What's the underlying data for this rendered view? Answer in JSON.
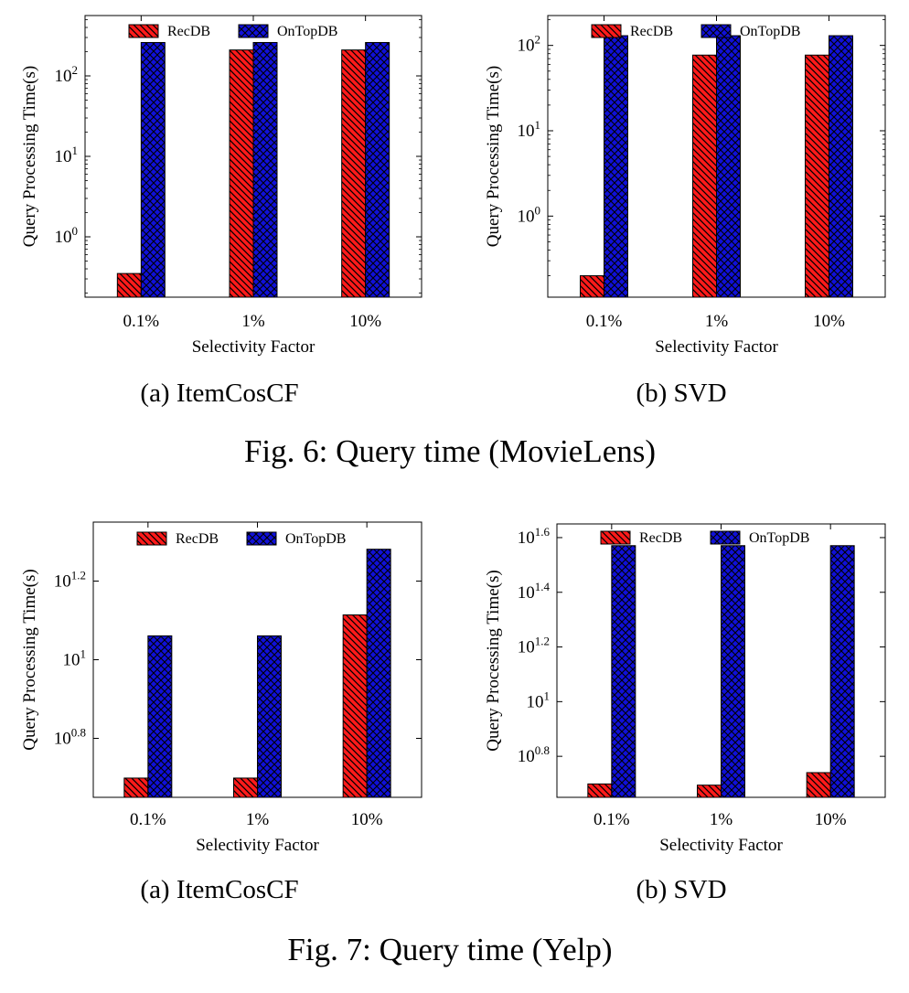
{
  "colors": {
    "recdb_fill": "#ff1a1a",
    "ontopdb_fill": "#1010d8",
    "pattern_stroke": "#000000",
    "axis": "#000000"
  },
  "figures": [
    {
      "caption": "Fig. 6: Query time (MovieLens)",
      "subcaptions": [
        "(a) ItemCosCF",
        "(b) SVD"
      ]
    },
    {
      "caption": "Fig. 7: Query time (Yelp)",
      "subcaptions": [
        "(a) ItemCosCF",
        "(b) SVD"
      ]
    }
  ],
  "chart_data": [
    {
      "type": "bar",
      "figure": "Fig. 6",
      "subcaption": "(a) ItemCosCF",
      "xlabel": "Selectivity Factor",
      "ylabel": "Query Processing Time(s)",
      "yscale": "log",
      "ylim_log10": [
        -0.75,
        2.75
      ],
      "yticks": [
        {
          "log10": 0,
          "label": "10^0"
        },
        {
          "log10": 1,
          "label": "10^1"
        },
        {
          "log10": 2,
          "label": "10^2"
        }
      ],
      "categories": [
        "0.1%",
        "1%",
        "10%"
      ],
      "series": [
        {
          "name": "RecDB",
          "values": [
            0.35,
            210,
            210
          ]
        },
        {
          "name": "OnTopDB",
          "values": [
            260,
            260,
            260
          ]
        }
      ],
      "legend": "top"
    },
    {
      "type": "bar",
      "figure": "Fig. 6",
      "subcaption": "(b) SVD",
      "xlabel": "Selectivity Factor",
      "ylabel": "Query Processing Time(s)",
      "yscale": "log",
      "ylim_log10": [
        -0.95,
        2.35
      ],
      "yticks": [
        {
          "log10": 0,
          "label": "10^0"
        },
        {
          "log10": 1,
          "label": "10^1"
        },
        {
          "log10": 2,
          "label": "10^2"
        }
      ],
      "categories": [
        "0.1%",
        "1%",
        "10%"
      ],
      "series": [
        {
          "name": "RecDB",
          "values": [
            0.2,
            77,
            77
          ]
        },
        {
          "name": "OnTopDB",
          "values": [
            130,
            130,
            130
          ]
        }
      ],
      "legend": "top"
    },
    {
      "type": "bar",
      "figure": "Fig. 7",
      "subcaption": "(a) ItemCosCF",
      "xlabel": "Selectivity Factor",
      "ylabel": "Query Processing Time(s)",
      "yscale": "log",
      "ylim_log10": [
        0.65,
        1.35
      ],
      "yticks": [
        {
          "log10": 0.8,
          "label": "10^0.8"
        },
        {
          "log10": 1.0,
          "label": "10^1"
        },
        {
          "log10": 1.2,
          "label": "10^1.2"
        }
      ],
      "categories": [
        "0.1%",
        "1%",
        "10%"
      ],
      "series": [
        {
          "name": "RecDB",
          "values": [
            5.0,
            5.0,
            13.0
          ]
        },
        {
          "name": "OnTopDB",
          "values": [
            11.5,
            11.5,
            19.1
          ]
        }
      ],
      "legend": "top"
    },
    {
      "type": "bar",
      "figure": "Fig. 7",
      "subcaption": "(b) SVD",
      "xlabel": "Selectivity Factor",
      "ylabel": "Query Processing Time(s)",
      "yscale": "log",
      "ylim_log10": [
        0.65,
        1.65
      ],
      "yticks": [
        {
          "log10": 0.8,
          "label": "10^0.8"
        },
        {
          "log10": 1.0,
          "label": "10^1"
        },
        {
          "log10": 1.2,
          "label": "10^1.2"
        },
        {
          "log10": 1.4,
          "label": "10^1.4"
        },
        {
          "log10": 1.6,
          "label": "10^1.6"
        }
      ],
      "categories": [
        "0.1%",
        "1%",
        "10%"
      ],
      "series": [
        {
          "name": "RecDB",
          "values": [
            5.0,
            4.95,
            5.5
          ]
        },
        {
          "name": "OnTopDB",
          "values": [
            37.2,
            37.2,
            37.2
          ]
        }
      ],
      "legend": "top"
    }
  ]
}
